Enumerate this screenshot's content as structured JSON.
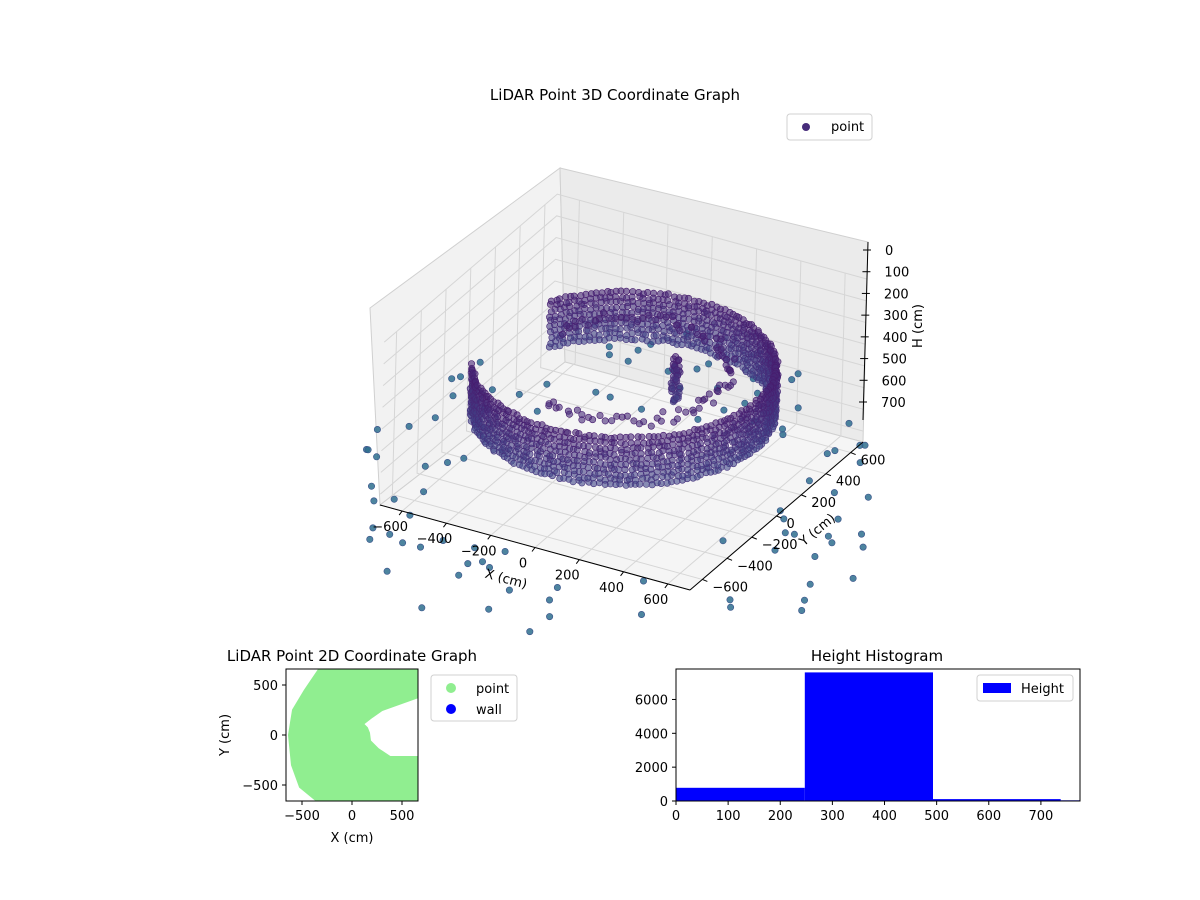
{
  "chart_data": [
    {
      "type": "scatter",
      "projection": "3d",
      "title": "LiDAR Point 3D Coordinate Graph",
      "xlabel": "X (cm)",
      "ylabel": "Y (cm)",
      "zlabel": "H (cm)",
      "xlim": [
        -700,
        700
      ],
      "ylim": [
        -700,
        700
      ],
      "zlim": [
        0,
        750
      ],
      "z_inverted": true,
      "xticks": [
        "−600",
        "−400",
        "−200",
        "0",
        "200",
        "400",
        "600"
      ],
      "yticks": [
        "−600",
        "−400",
        "−200",
        "0",
        "200",
        "400",
        "600"
      ],
      "zticks": [
        "0",
        "100",
        "200",
        "300",
        "400",
        "500",
        "600",
        "700"
      ],
      "legend": {
        "placement": "upper-right",
        "entries": [
          "point"
        ]
      },
      "colormap": "viridis",
      "legend_color": "#472d7b",
      "grid": true,
      "description_of_structure": {
        "outer_wall_radius": 600,
        "wall_height_range": [
          250,
          480
        ],
        "opening_direction": "+X",
        "person_location": [
          150,
          150
        ],
        "person_height_range": [
          250,
          450
        ]
      }
    },
    {
      "type": "scatter",
      "title": "LiDAR Point 2D Coordinate Graph",
      "xlabel": "X (cm)",
      "ylabel": "Y (cm)",
      "xlim": [
        -660,
        660
      ],
      "ylim": [
        -660,
        660
      ],
      "xticks": [
        "−500",
        "0",
        "500"
      ],
      "yticks": [
        "−500",
        "0",
        "500"
      ],
      "legend": {
        "placement": "outside-right",
        "entries": [
          {
            "name": "point",
            "color": "#90ee90"
          },
          {
            "name": "wall",
            "color": "#0000ff"
          }
        ]
      },
      "grid": false
    },
    {
      "type": "bar",
      "subtype": "histogram",
      "title": "Height Histogram",
      "xlim": [
        0,
        775
      ],
      "ylim": [
        0,
        7800
      ],
      "xticks": [
        "0",
        "100",
        "200",
        "300",
        "400",
        "500",
        "600",
        "700"
      ],
      "yticks": [
        "0",
        "2000",
        "4000",
        "6000"
      ],
      "bins": [
        {
          "start": 0,
          "end": 247,
          "count": 780
        },
        {
          "start": 247,
          "end": 493,
          "count": 7600
        },
        {
          "start": 493,
          "end": 738,
          "count": 110
        },
        {
          "start": 738,
          "end": 775,
          "count": 40
        }
      ],
      "legend": {
        "placement": "upper-right",
        "entries": [
          "Height"
        ]
      },
      "bar_color": "#0000ff",
      "grid": false
    }
  ]
}
